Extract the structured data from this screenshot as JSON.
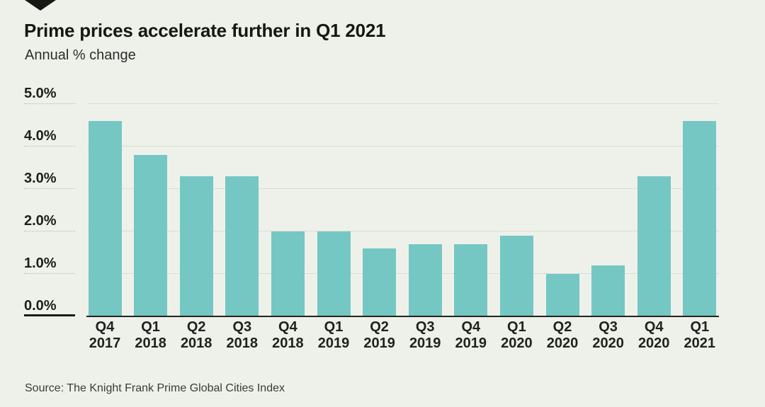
{
  "header": {
    "title": "Prime prices accelerate further in Q1 2021",
    "subtitle": "Annual % change"
  },
  "icons": {
    "down_arrow": "black triangle pointing down"
  },
  "colors": {
    "background": "#edf1ea",
    "bar": "#74c7c3",
    "gridline": "#d8ddd5",
    "axis": "#23231f",
    "ink": "#161613"
  },
  "source": {
    "text": "Source: The Knight Frank Prime Global Cities Index"
  },
  "chart_data": {
    "type": "bar",
    "title": "Prime prices accelerate further in Q1 2021",
    "subtitle": "Annual % change",
    "xlabel": "",
    "ylabel": "Annual % change",
    "categories": [
      "Q4 2017",
      "Q1 2018",
      "Q2 2018",
      "Q3 2018",
      "Q4 2018",
      "Q1 2019",
      "Q2 2019",
      "Q3 2019",
      "Q4 2019",
      "Q1 2020",
      "Q2 2020",
      "Q3 2020",
      "Q4 2020",
      "Q1 2021"
    ],
    "values": [
      4.6,
      3.8,
      3.3,
      3.3,
      2.0,
      2.0,
      1.6,
      1.7,
      1.7,
      1.9,
      1.0,
      1.2,
      3.3,
      4.6
    ],
    "yticks": [
      "5.0%",
      "4.0%",
      "3.0%",
      "2.0%",
      "1.0%",
      "0.0%"
    ],
    "ylim": [
      0,
      5
    ],
    "grid": "horizontal",
    "legend": "none",
    "bar_color": "#74c7c3"
  }
}
